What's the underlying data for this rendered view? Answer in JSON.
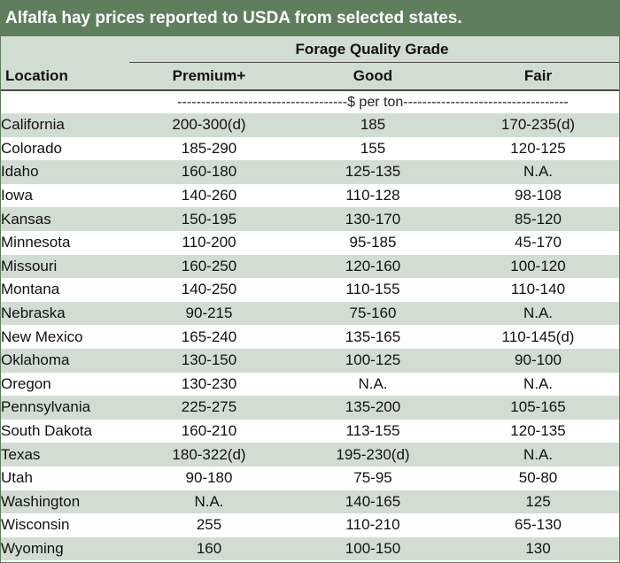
{
  "title": "Alfalfa hay prices reported to USDA from selected states.",
  "header": {
    "group_label": "Forage Quality Grade",
    "location_label": "Location",
    "columns": [
      "Premium+",
      "Good",
      "Fair"
    ]
  },
  "units": "------------------------------------$ per ton-----------------------------------",
  "rows": [
    {
      "location": "California",
      "premium": "200-300(d)",
      "good": "185",
      "fair": "170-235(d)"
    },
    {
      "location": "Colorado",
      "premium": "185-290",
      "good": "155",
      "fair": "120-125"
    },
    {
      "location": "Idaho",
      "premium": "160-180",
      "good": "125-135",
      "fair": "N.A."
    },
    {
      "location": "Iowa",
      "premium": "140-260",
      "good": "110-128",
      "fair": "98-108"
    },
    {
      "location": "Kansas",
      "premium": "150-195",
      "good": "130-170",
      "fair": "85-120"
    },
    {
      "location": "Minnesota",
      "premium": "110-200",
      "good": "95-185",
      "fair": "45-170"
    },
    {
      "location": "Missouri",
      "premium": "160-250",
      "good": "120-160",
      "fair": "100-120"
    },
    {
      "location": "Montana",
      "premium": "140-250",
      "good": "110-155",
      "fair": "110-140"
    },
    {
      "location": "Nebraska",
      "premium": "90-215",
      "good": "75-160",
      "fair": "N.A."
    },
    {
      "location": "New Mexico",
      "premium": "165-240",
      "good": "135-165",
      "fair": "110-145(d)"
    },
    {
      "location": "Oklahoma",
      "premium": "130-150",
      "good": "100-125",
      "fair": "90-100"
    },
    {
      "location": "Oregon",
      "premium": "130-230",
      "good": "N.A.",
      "fair": "N.A."
    },
    {
      "location": "Pennsylvania",
      "premium": "225-275",
      "good": "135-200",
      "fair": "105-165"
    },
    {
      "location": "South Dakota",
      "premium": "160-210",
      "good": "113-155",
      "fair": "120-135"
    },
    {
      "location": "Texas",
      "premium": "180-322(d)",
      "good": "195-230(d)",
      "fair": "N.A."
    },
    {
      "location": "Utah",
      "premium": "90-180",
      "good": "75-95",
      "fair": "50-80"
    },
    {
      "location": "Washington",
      "premium": "N.A.",
      "good": "140-165",
      "fair": "125"
    },
    {
      "location": "Wisconsin",
      "premium": "255",
      "good": "110-210",
      "fair": "65-130"
    },
    {
      "location": "Wyoming",
      "premium": "160",
      "good": "100-150",
      "fair": "130"
    }
  ],
  "colors": {
    "title_bg": "#5e7e5e",
    "band_bg": "#d2ddd2",
    "rule": "#4a4a4a"
  }
}
